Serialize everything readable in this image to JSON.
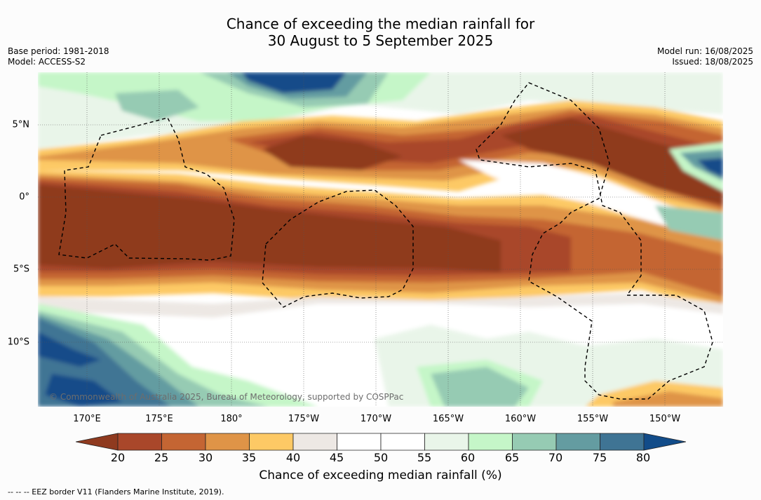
{
  "header": {
    "title_line1": "Chance of exceeding the median rainfall for",
    "title_line2": "30 August to 5 September 2025",
    "base_period": "Base period: 1981-2018",
    "model": "Model: ACCESS-S2",
    "model_run": "Model run: 16/08/2025",
    "issued": "Issued: 18/08/2025"
  },
  "map": {
    "lat_labels": [
      "5°N",
      "0°",
      "5°S",
      "10°S"
    ],
    "lon_labels": [
      "170°E",
      "175°E",
      "180°",
      "175°W",
      "170°W",
      "165°W",
      "160°W",
      "155°W",
      "150°W"
    ],
    "copyright": "© Commonwealth of Australia 2025, Bureau of Meteorology, supported by COSPPac"
  },
  "colorbar": {
    "ticks": [
      "20",
      "25",
      "30",
      "35",
      "40",
      "45",
      "50",
      "55",
      "60",
      "65",
      "70",
      "75",
      "80"
    ],
    "colors": [
      "#8f3a1f",
      "#a9472a",
      "#c46533",
      "#df9447",
      "#fdc965",
      "#ede8e4",
      "#ffffff",
      "#ffffff",
      "#e9f5e9",
      "#c5f6c8",
      "#96cbb3",
      "#649ca1",
      "#3f7494",
      "#124c89"
    ],
    "label": "Chance of exceeding median rainfall (%)"
  },
  "footnote": "-- -- -- EEZ border V11 (Flanders Marine Institute, 2019)."
}
